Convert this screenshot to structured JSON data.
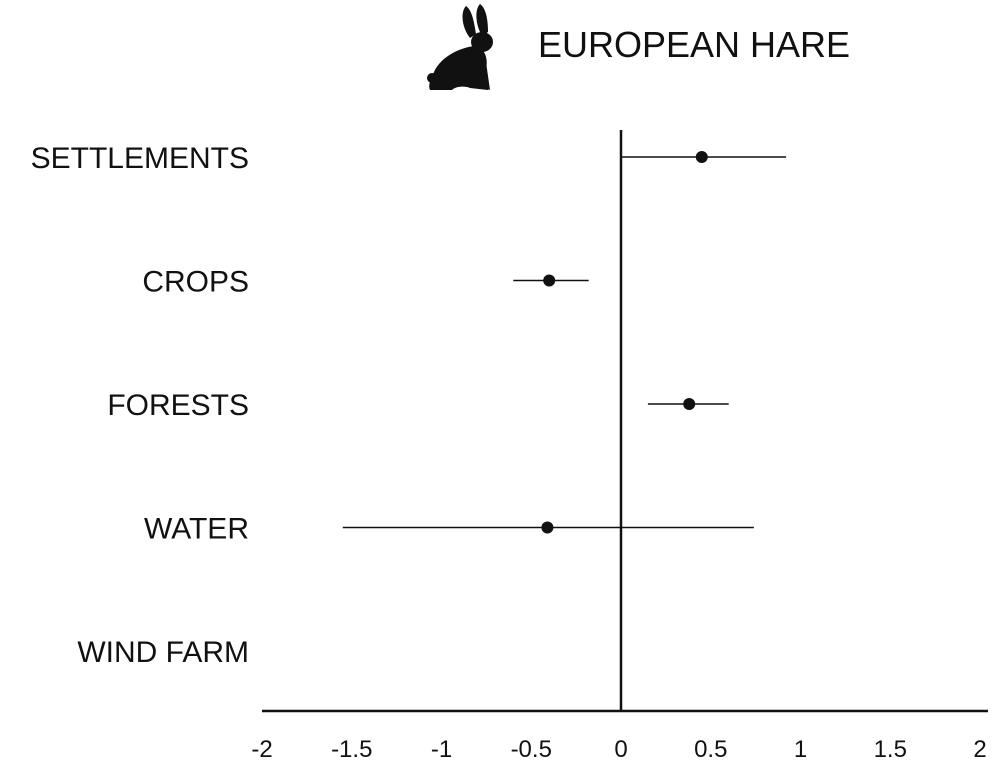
{
  "chart_data": {
    "type": "forest",
    "title": "EUROPEAN HARE",
    "title_icon": "hare-silhouette-icon",
    "categories": [
      "SETTLEMENTS",
      "CROPS",
      "FORESTS",
      "WATER",
      "WIND FARM"
    ],
    "estimates": [
      0.45,
      -0.4,
      0.38,
      -0.41,
      null
    ],
    "ci_lower": [
      0.0,
      -0.6,
      0.15,
      -1.55,
      null
    ],
    "ci_upper": [
      0.92,
      -0.18,
      0.6,
      0.74,
      null
    ],
    "xlim": [
      -2,
      2
    ],
    "xticks": [
      -2,
      -1.5,
      -1,
      -0.5,
      0,
      0.5,
      1,
      1.5,
      2
    ],
    "xtick_labels": [
      "-2",
      "-1.5",
      "-1",
      "-0.5",
      "0",
      "0.5",
      "1",
      "1.5",
      "2"
    ],
    "xlabel": "",
    "ylabel": "",
    "reference_line": 0,
    "grid": false,
    "colors": {
      "ink": "#111111",
      "background": "#ffffff"
    }
  }
}
